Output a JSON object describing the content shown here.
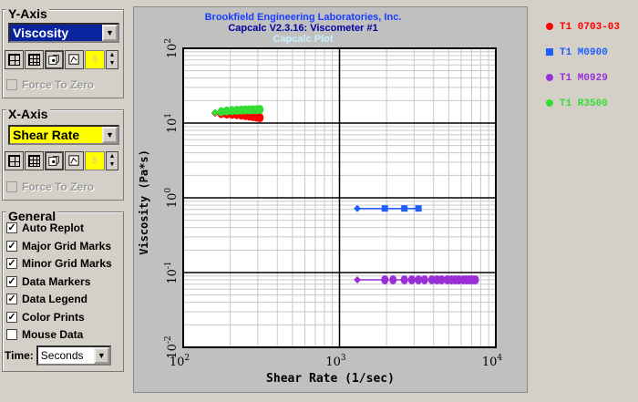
{
  "y_axis": {
    "title": "Y-Axis",
    "select_value": "Viscosity",
    "spin_value": "5",
    "force_zero_label": "Force To Zero"
  },
  "x_axis": {
    "title": "X-Axis",
    "select_value": "Shear Rate",
    "spin_value": "5",
    "force_zero_label": "Force To Zero"
  },
  "general": {
    "title": "General",
    "options": [
      {
        "label": "Auto Replot",
        "checked": true
      },
      {
        "label": "Major Grid Marks",
        "checked": true
      },
      {
        "label": "Minor Grid Marks",
        "checked": true
      },
      {
        "label": "Data Markers",
        "checked": true
      },
      {
        "label": "Data Legend",
        "checked": true
      },
      {
        "label": "Color Prints",
        "checked": true
      },
      {
        "label": "Mouse Data",
        "checked": false
      }
    ],
    "time_label": "Time:",
    "time_value": "Seconds"
  },
  "chart_data": {
    "type": "scatter",
    "title_lines": [
      "Brookfield Engineering Laboratories, Inc.",
      "Capcalc V2.3.16: Viscometer #1",
      "Capcalc Plot"
    ],
    "xlabel": "Shear Rate (1/sec)",
    "ylabel": "Viscosity (Pa*s)",
    "x_scale": "log",
    "y_scale": "log",
    "xlim": [
      100,
      10000
    ],
    "ylim": [
      0.01,
      100
    ],
    "x_ticks": [
      {
        "base": "10",
        "exp": "2",
        "v": 100
      },
      {
        "base": "10",
        "exp": "3",
        "v": 1000
      },
      {
        "base": "10",
        "exp": "4",
        "v": 10000
      }
    ],
    "y_ticks": [
      {
        "base": "10",
        "exp": "2",
        "v": 100
      },
      {
        "base": "10",
        "exp": "1",
        "v": 10
      },
      {
        "base": "10",
        "exp": "0",
        "v": 1
      },
      {
        "base": "10",
        "exp": "-1",
        "v": 0.1
      },
      {
        "base": "10",
        "exp": "-2",
        "v": 0.01
      }
    ],
    "grid": true,
    "legend_position": "right",
    "series": [
      {
        "name": "T1 0703-03",
        "color": "#ff0000",
        "marker": "circle",
        "x": [
          160,
          175,
          190,
          205,
          220,
          235,
          250,
          265,
          280,
          295,
          310
        ],
        "y": [
          13.5,
          13.4,
          13.2,
          13.1,
          13.0,
          12.8,
          12.6,
          12.4,
          12.2,
          12.0,
          11.8
        ]
      },
      {
        "name": "T1 M0900",
        "color": "#1e5fff",
        "marker": "square",
        "x": [
          1300,
          1950,
          2600,
          3200
        ],
        "y": [
          0.72,
          0.72,
          0.72,
          0.72
        ]
      },
      {
        "name": "T1 M0929",
        "color": "#9a2fd6",
        "marker": "circle",
        "x": [
          1300,
          1950,
          2200,
          2600,
          2900,
          3200,
          3500,
          3900,
          4200,
          4500,
          4900,
          5200,
          5500,
          5800,
          6200,
          6500,
          6800,
          7100,
          7400
        ],
        "y": [
          0.08,
          0.08,
          0.08,
          0.08,
          0.08,
          0.08,
          0.08,
          0.08,
          0.08,
          0.08,
          0.08,
          0.08,
          0.08,
          0.08,
          0.08,
          0.08,
          0.08,
          0.08,
          0.08
        ]
      },
      {
        "name": "T1 R3500",
        "color": "#33dd33",
        "marker": "circle",
        "x": [
          160,
          175,
          190,
          205,
          220,
          235,
          250,
          265,
          280,
          295,
          310
        ],
        "y": [
          13.8,
          14.2,
          14.5,
          14.7,
          14.8,
          14.9,
          15.0,
          15.0,
          15.1,
          15.1,
          15.2
        ]
      }
    ]
  }
}
